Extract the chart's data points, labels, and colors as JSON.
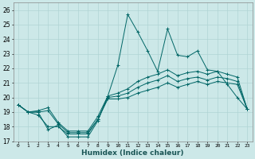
{
  "title": "",
  "xlabel": "Humidex (Indice chaleur)",
  "ylabel": "",
  "xlim": [
    -0.5,
    23.5
  ],
  "ylim": [
    17,
    26.5
  ],
  "yticks": [
    17,
    18,
    19,
    20,
    21,
    22,
    23,
    24,
    25,
    26
  ],
  "xticks": [
    0,
    1,
    2,
    3,
    4,
    5,
    6,
    7,
    8,
    9,
    10,
    11,
    12,
    13,
    14,
    15,
    16,
    17,
    18,
    19,
    20,
    21,
    22,
    23
  ],
  "background_color": "#cce8e8",
  "grid_color": "#b0d4d4",
  "line_color": "#006666",
  "series": [
    [
      19.5,
      19.0,
      19.0,
      17.8,
      18.1,
      17.3,
      17.3,
      17.3,
      18.4,
      20.1,
      22.2,
      25.7,
      24.5,
      23.2,
      21.8,
      24.7,
      22.9,
      22.8,
      23.2,
      21.9,
      21.8,
      20.9,
      20.0,
      19.2
    ],
    [
      19.5,
      19.0,
      19.1,
      19.3,
      18.3,
      17.7,
      17.7,
      17.7,
      18.7,
      20.1,
      20.3,
      20.6,
      21.1,
      21.4,
      21.6,
      21.9,
      21.5,
      21.7,
      21.8,
      21.6,
      21.8,
      21.6,
      21.4,
      19.2
    ],
    [
      19.5,
      19.0,
      19.0,
      19.1,
      18.2,
      17.6,
      17.6,
      17.6,
      18.5,
      20.0,
      20.1,
      20.3,
      20.7,
      21.0,
      21.2,
      21.5,
      21.1,
      21.3,
      21.4,
      21.2,
      21.4,
      21.3,
      21.1,
      19.2
    ],
    [
      19.5,
      19.0,
      18.8,
      18.0,
      18.0,
      17.5,
      17.5,
      17.5,
      18.5,
      19.9,
      19.9,
      20.0,
      20.3,
      20.5,
      20.7,
      21.0,
      20.7,
      20.9,
      21.1,
      20.9,
      21.1,
      21.0,
      20.9,
      19.2
    ]
  ]
}
